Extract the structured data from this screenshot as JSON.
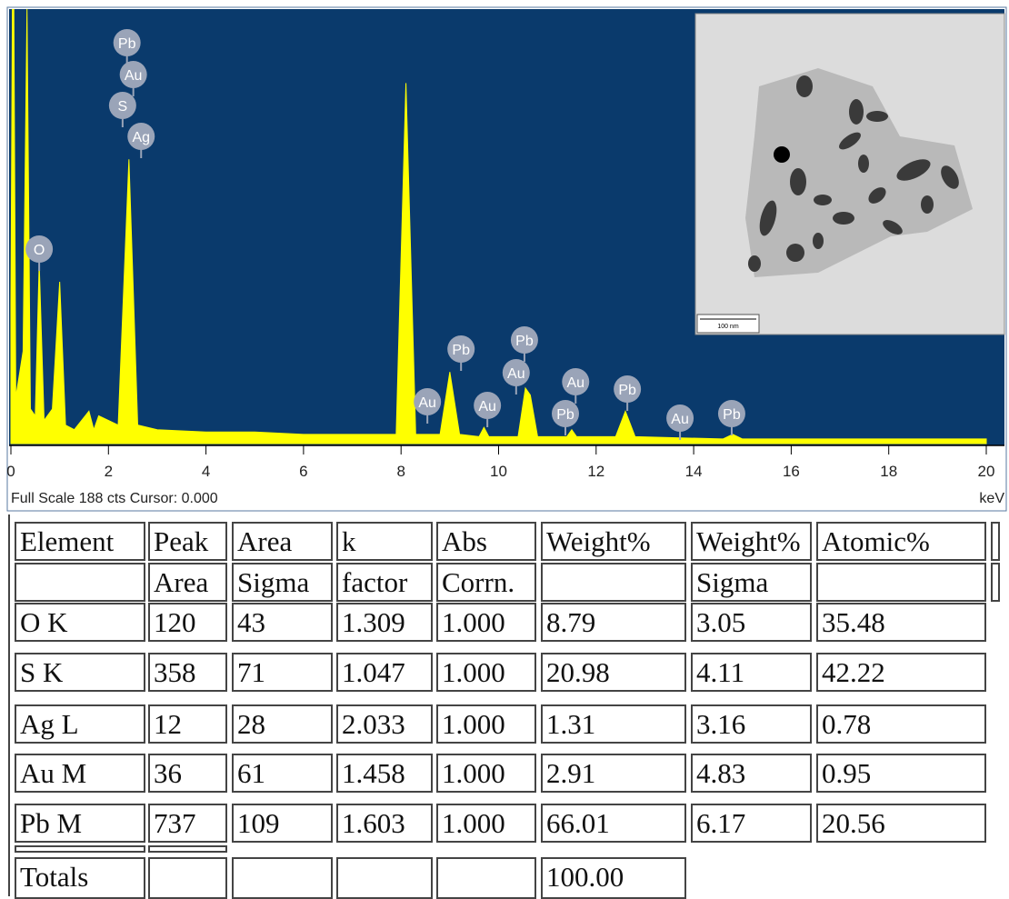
{
  "chart_data": {
    "type": "area",
    "x": [
      0,
      0.03,
      0.06,
      0.1,
      0.25,
      0.33,
      0.4,
      0.5,
      0.58,
      0.68,
      0.85,
      1.0,
      1.12,
      1.3,
      1.6,
      1.7,
      1.8,
      2.2,
      2.42,
      2.6,
      3,
      4,
      5,
      6,
      7,
      7.9,
      8.1,
      8.3,
      8.8,
      9.0,
      9.2,
      9.6,
      9.7,
      9.8,
      10.4,
      10.55,
      10.65,
      10.8,
      11.4,
      11.5,
      11.6,
      12.4,
      12.6,
      12.8,
      14.6,
      14.8,
      15,
      17,
      20
    ],
    "values": [
      60,
      188,
      188,
      20,
      40,
      188,
      15,
      12,
      78,
      10,
      15,
      70,
      8,
      6,
      14,
      6,
      12,
      8,
      123,
      8,
      6,
      5,
      5,
      4,
      4,
      4,
      156,
      4,
      4,
      31,
      4,
      3,
      7,
      3,
      3,
      24,
      21,
      3,
      3,
      6,
      3,
      3,
      14,
      3,
      2,
      4,
      2,
      2,
      2
    ],
    "color": "#ffff00",
    "background": "#0a3a6c",
    "xlim": [
      0,
      20
    ],
    "xticks": [
      0,
      2,
      4,
      6,
      8,
      10,
      12,
      14,
      16,
      18,
      20
    ],
    "ylim": [
      0,
      188
    ],
    "footer": "Full Scale 188 cts Cursor: 0.000",
    "x_unit": "keV",
    "markers": [
      {
        "label": "Pb",
        "x": 2.38
      },
      {
        "label": "Au",
        "x": 2.51
      },
      {
        "label": "S",
        "x": 2.29
      },
      {
        "label": "Ag",
        "x": 2.67
      },
      {
        "label": "O",
        "x": 0.58
      },
      {
        "label": "Au",
        "x": 8.54
      },
      {
        "label": "Pb",
        "x": 9.23
      },
      {
        "label": "Au",
        "x": 9.77
      },
      {
        "label": "Au",
        "x": 10.36
      },
      {
        "label": "Pb",
        "x": 10.53
      },
      {
        "label": "Au",
        "x": 11.58
      },
      {
        "label": "Pb",
        "x": 11.37
      },
      {
        "label": "Pb",
        "x": 12.64
      },
      {
        "label": "Au",
        "x": 13.72
      },
      {
        "label": "Pb",
        "x": 14.78
      }
    ],
    "inset": {
      "scale_bar": "100 nm"
    }
  },
  "table": {
    "header": [
      [
        "Element",
        "Peak",
        "Area",
        "k",
        "Abs",
        "Weight%",
        "Weight%",
        "Atomic%"
      ],
      [
        null,
        "Area",
        "Sigma",
        "factor",
        "Corrn.",
        null,
        "Sigma",
        null
      ]
    ],
    "rows": [
      [
        "O K",
        "120",
        "43",
        "1.309",
        "1.000",
        "8.79",
        "3.05",
        "35.48"
      ],
      [
        "S K",
        "358",
        "71",
        "1.047",
        "1.000",
        "20.98",
        "4.11",
        "42.22"
      ],
      [
        "Ag L",
        "12",
        "28",
        "2.033",
        "1.000",
        "1.31",
        "3.16",
        "0.78"
      ],
      [
        "Au M",
        "36",
        "61",
        "1.458",
        "1.000",
        "2.91",
        "4.83",
        "0.95"
      ],
      [
        "Pb M",
        "737",
        "109",
        "1.603",
        "1.000",
        "66.01",
        "6.17",
        "20.56"
      ]
    ],
    "totals": [
      "Totals",
      null,
      null,
      null,
      null,
      "100.00"
    ]
  }
}
